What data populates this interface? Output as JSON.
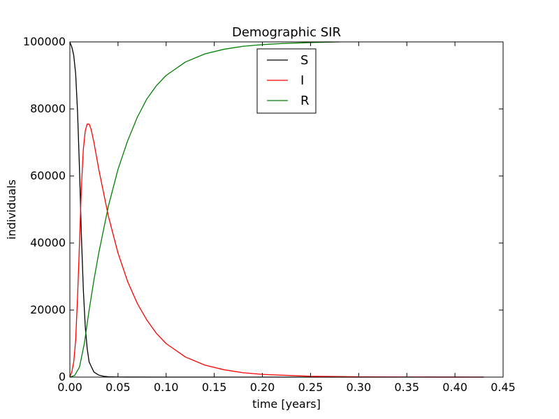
{
  "chart_data": {
    "type": "line",
    "title": "Demographic SIR",
    "xlabel": "time [years]",
    "ylabel": "individuals",
    "xlim": [
      0.0,
      0.45
    ],
    "ylim": [
      0,
      100000
    ],
    "xticks": [
      "0.00",
      "0.05",
      "0.10",
      "0.15",
      "0.20",
      "0.25",
      "0.30",
      "0.35",
      "0.40",
      "0.45"
    ],
    "yticks": [
      "0",
      "20000",
      "40000",
      "60000",
      "80000",
      "100000"
    ],
    "legend_placement": "upper-center",
    "grid": false,
    "series": [
      {
        "name": "S",
        "color": "#000000",
        "x": [
          0.0,
          0.002,
          0.004,
          0.006,
          0.008,
          0.01,
          0.012,
          0.014,
          0.016,
          0.018,
          0.02,
          0.025,
          0.03,
          0.035,
          0.04,
          0.05,
          0.06,
          0.1,
          0.2,
          0.3,
          0.43
        ],
        "y": [
          99900,
          98500,
          96000,
          90500,
          79000,
          62000,
          42000,
          26000,
          15000,
          8500,
          4500,
          1500,
          600,
          250,
          100,
          30,
          10,
          0,
          0,
          0,
          0
        ]
      },
      {
        "name": "I",
        "color": "#ff0000",
        "x": [
          0.0,
          0.002,
          0.004,
          0.006,
          0.008,
          0.01,
          0.012,
          0.014,
          0.016,
          0.018,
          0.02,
          0.022,
          0.025,
          0.03,
          0.035,
          0.04,
          0.05,
          0.06,
          0.07,
          0.08,
          0.09,
          0.1,
          0.12,
          0.14,
          0.16,
          0.18,
          0.2,
          0.25,
          0.3,
          0.35,
          0.43
        ],
        "y": [
          100,
          1500,
          4500,
          11000,
          24000,
          40000,
          57000,
          68000,
          73500,
          75500,
          75500,
          74000,
          70000,
          62000,
          55000,
          48000,
          37000,
          28500,
          22000,
          17000,
          13000,
          10000,
          6000,
          3600,
          2200,
          1300,
          800,
          250,
          80,
          25,
          5
        ]
      },
      {
        "name": "R",
        "color": "#008000",
        "x": [
          0.0,
          0.005,
          0.01,
          0.015,
          0.02,
          0.025,
          0.03,
          0.035,
          0.04,
          0.05,
          0.06,
          0.07,
          0.08,
          0.09,
          0.1,
          0.12,
          0.14,
          0.16,
          0.18,
          0.2,
          0.22,
          0.25,
          0.28
        ],
        "y": [
          0,
          500,
          3000,
          10000,
          20000,
          29000,
          37000,
          44000,
          51000,
          62000,
          70500,
          77500,
          83000,
          87000,
          90000,
          94000,
          96400,
          97800,
          98700,
          99200,
          99500,
          99800,
          100000
        ]
      }
    ]
  }
}
